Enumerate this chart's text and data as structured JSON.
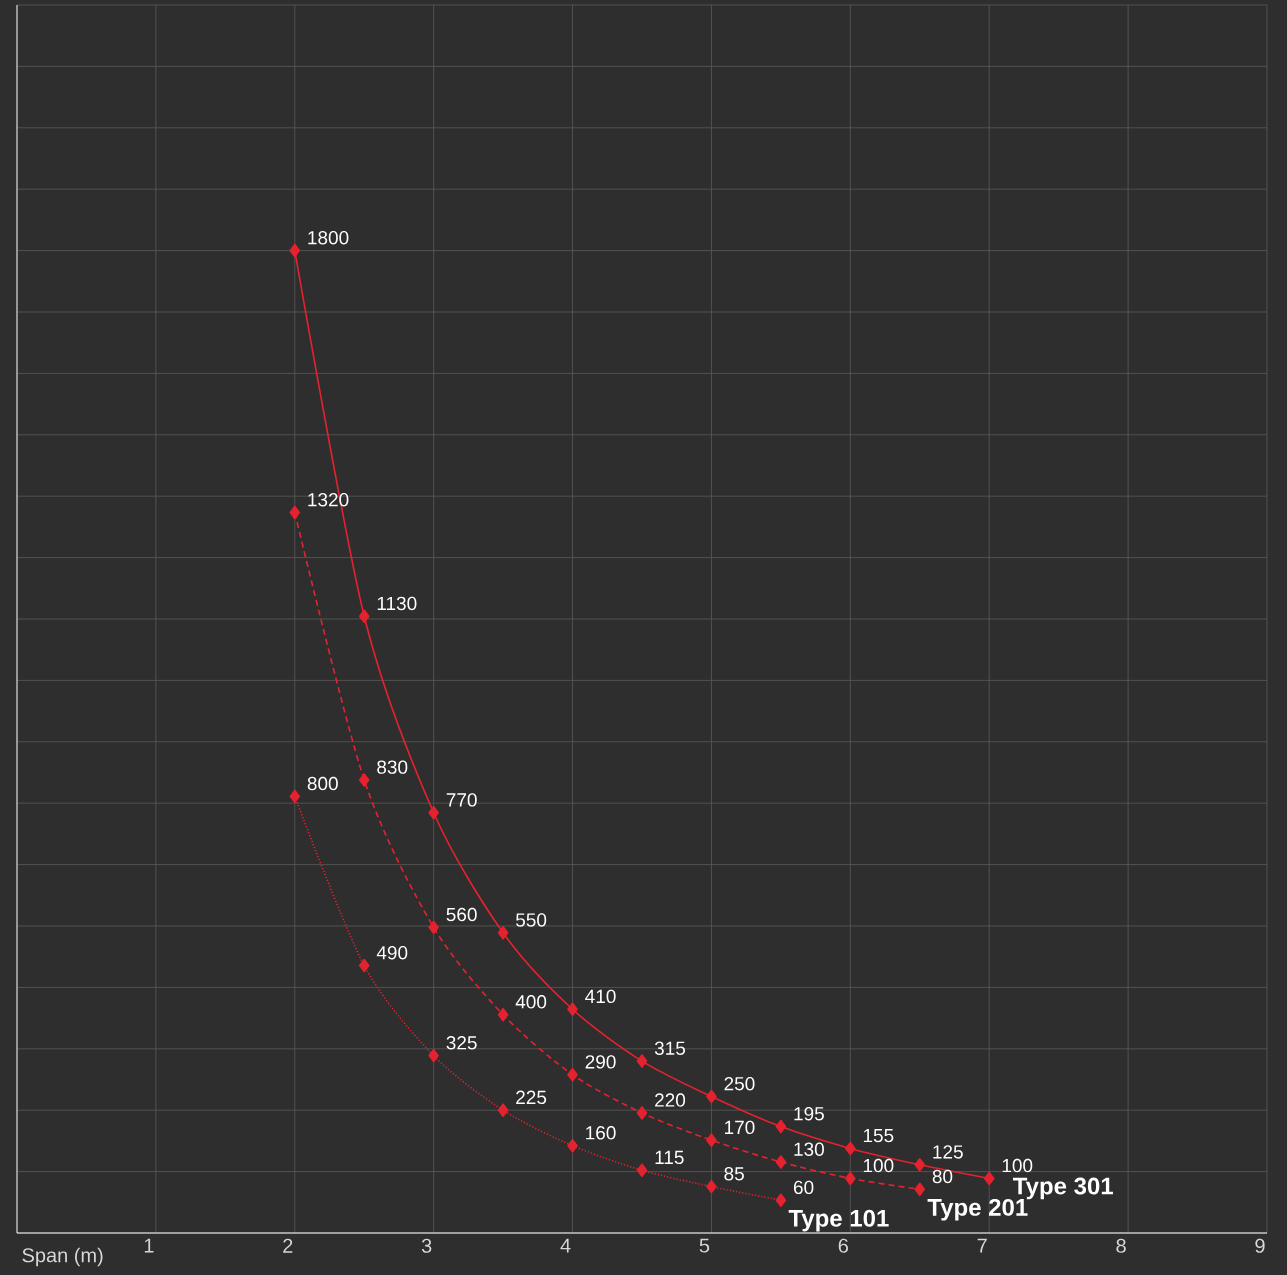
{
  "chart_data": {
    "type": "line",
    "xlabel": "Span (m)",
    "xlim": [
      0,
      9
    ],
    "xticks": [
      1,
      2,
      3,
      4,
      5,
      6,
      7,
      8,
      9
    ],
    "ylim": [
      0,
      2250
    ],
    "yticks": [
      {
        "value": 0,
        "label": null
      },
      {
        "value": 112.5,
        "label": null
      },
      {
        "value": 225,
        "label": null
      },
      {
        "value": 337.5,
        "label": null
      },
      {
        "value": 450,
        "label": null
      },
      {
        "value": 562.5,
        "label": null
      },
      {
        "value": 675,
        "label": null
      },
      {
        "value": 787.5,
        "label": null
      },
      {
        "value": 900,
        "label": null
      },
      {
        "value": 1012.5,
        "label": null
      },
      {
        "value": 1125,
        "label": null
      },
      {
        "value": 1237.5,
        "label": null
      },
      {
        "value": 1350,
        "label": null
      },
      {
        "value": 1462.5,
        "label": null
      },
      {
        "value": 1575,
        "label": null
      },
      {
        "value": 1687.5,
        "label": null
      },
      {
        "value": 1800,
        "label": null
      },
      {
        "value": 1912.5,
        "label": null
      },
      {
        "value": 2025,
        "label": null
      },
      {
        "value": 2137.5,
        "label": null
      },
      {
        "value": 2250,
        "label": null
      }
    ],
    "tick_labels": "x",
    "grid": true,
    "legend": false,
    "marker": "diamond",
    "data_labels": true,
    "series": [
      {
        "name": "Type 301",
        "color": "#e5222f",
        "line_style": "solid",
        "x": [
          2,
          2.5,
          3,
          3.5,
          4,
          4.5,
          5,
          5.5,
          6,
          6.5,
          7
        ],
        "values": [
          1800,
          1130,
          770,
          550,
          410,
          315,
          250,
          195,
          155,
          125,
          100
        ]
      },
      {
        "name": "Type 201",
        "color": "#e5222f",
        "line_style": "dashed",
        "x": [
          2,
          2.5,
          3,
          3.5,
          4,
          4.5,
          5,
          5.5,
          6,
          6.5
        ],
        "values": [
          1320,
          830,
          560,
          400,
          290,
          220,
          170,
          130,
          100,
          80
        ]
      },
      {
        "name": "Type 101",
        "color": "#e5222f",
        "line_style": "dotted",
        "x": [
          2,
          2.5,
          3,
          3.5,
          4,
          4.5,
          5,
          5.5
        ],
        "values": [
          800,
          490,
          325,
          225,
          160,
          115,
          85,
          60
        ]
      }
    ]
  }
}
